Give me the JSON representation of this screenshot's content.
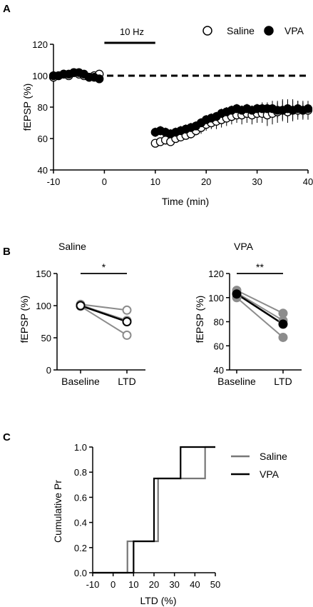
{
  "chart_data": [
    {
      "panel_letter": "A",
      "type": "scatter",
      "xlabel": "Time (min)",
      "ylabel": "fEPSP (%)",
      "xlim": [
        -10,
        40
      ],
      "ylim": [
        40,
        120
      ],
      "xticks": [
        "-10",
        "0",
        "10",
        "20",
        "30",
        "40"
      ],
      "yticks": [
        "40",
        "60",
        "80",
        "100",
        "120"
      ],
      "stimulus_label": "10 Hz",
      "stimulus_range": [
        0,
        10
      ],
      "baseline_level": 100,
      "legend_position": "top-right",
      "series": [
        {
          "name": "Saline",
          "marker": "open-circle",
          "x": [
            -10,
            -9,
            -8,
            -7,
            -6,
            -5,
            -4,
            -3,
            -2,
            -1,
            10,
            11,
            12,
            13,
            14,
            15,
            16,
            17,
            18,
            19,
            20,
            21,
            22,
            23,
            24,
            25,
            26,
            27,
            28,
            29,
            30,
            31,
            32,
            33,
            34,
            35,
            36,
            37,
            38,
            39,
            40
          ],
          "y": [
            99,
            100,
            101,
            100,
            102,
            101,
            100,
            99,
            100,
            101,
            57,
            58,
            59,
            58,
            60,
            61,
            62,
            63,
            65,
            67,
            69,
            70,
            71,
            72,
            73,
            74,
            75,
            75,
            76,
            75,
            76,
            76,
            75,
            76,
            77,
            78,
            77,
            78,
            78,
            78,
            78
          ],
          "error": [
            1,
            1,
            1,
            1,
            1,
            1,
            1,
            1,
            1,
            1,
            2,
            2,
            2,
            2,
            2,
            2,
            2,
            3,
            3,
            4,
            4,
            4,
            5,
            5,
            5,
            5,
            5,
            6,
            6,
            6,
            6,
            6,
            7,
            7,
            7,
            7,
            7,
            7,
            6,
            6,
            6
          ]
        },
        {
          "name": "VPA",
          "marker": "filled-circle",
          "x": [
            -10,
            -9,
            -8,
            -7,
            -6,
            -5,
            -4,
            -3,
            -2,
            -1,
            10,
            11,
            12,
            13,
            14,
            15,
            16,
            17,
            18,
            19,
            20,
            21,
            22,
            23,
            24,
            25,
            26,
            27,
            28,
            29,
            30,
            31,
            32,
            33,
            34,
            35,
            36,
            37,
            38,
            39,
            40
          ],
          "y": [
            100,
            100,
            101,
            101,
            102,
            102,
            101,
            99,
            99,
            98,
            64,
            65,
            64,
            63,
            64,
            65,
            66,
            67,
            68,
            70,
            72,
            73,
            74,
            76,
            77,
            78,
            79,
            78,
            79,
            78,
            79,
            79,
            79,
            79,
            78,
            78,
            79,
            78,
            79,
            78,
            79
          ],
          "error": [
            1,
            1,
            1,
            1,
            1,
            1,
            1,
            1,
            1,
            1,
            3,
            3,
            3,
            3,
            3,
            3,
            3,
            3,
            3,
            3,
            3,
            3,
            3,
            3,
            3,
            3,
            3,
            3,
            3,
            3,
            3,
            4,
            4,
            5,
            5,
            6,
            6,
            6,
            5,
            5,
            4
          ]
        }
      ]
    },
    {
      "panel_letter": "B",
      "type": "line",
      "title": "Saline",
      "ylabel": "fEPSP (%)",
      "categories": [
        "Baseline",
        "LTD"
      ],
      "ylim": [
        0,
        150
      ],
      "yticks": [
        "0",
        "50",
        "100",
        "150"
      ],
      "significance": "*",
      "individual_pairs": [
        [
          102,
          93
        ],
        [
          101,
          77
        ],
        [
          99,
          54
        ]
      ],
      "mean_pair": [
        100,
        75
      ]
    },
    {
      "type": "line",
      "title": "VPA",
      "ylabel": "fEPSP (%)",
      "categories": [
        "Baseline",
        "LTD"
      ],
      "ylim": [
        40,
        120
      ],
      "yticks": [
        "40",
        "60",
        "80",
        "100",
        "120"
      ],
      "significance": "**",
      "individual_pairs": [
        [
          106,
          87
        ],
        [
          104,
          81
        ],
        [
          100,
          67
        ]
      ],
      "mean_pair": [
        103,
        78
      ]
    },
    {
      "panel_letter": "C",
      "type": "line",
      "xlabel": "LTD (%)",
      "ylabel": "Cumulative Pr",
      "xlim": [
        -10,
        50
      ],
      "ylim": [
        0,
        1
      ],
      "xticks": [
        "-10",
        "0",
        "10",
        "20",
        "30",
        "40",
        "50"
      ],
      "yticks": [
        "0.0",
        "0.2",
        "0.4",
        "0.6",
        "0.8",
        "1.0"
      ],
      "legend_position": "top-right",
      "series": [
        {
          "name": "Saline",
          "color": "#777777",
          "x": [
            -10,
            7,
            7,
            22,
            22,
            45,
            45,
            50
          ],
          "y": [
            0,
            0,
            0.25,
            0.25,
            0.75,
            0.75,
            1,
            1
          ]
        },
        {
          "name": "VPA",
          "color": "#000000",
          "x": [
            -10,
            10,
            10,
            20,
            20,
            33,
            33,
            50
          ],
          "y": [
            0,
            0,
            0.25,
            0.25,
            0.75,
            0.75,
            1,
            1
          ]
        }
      ]
    }
  ]
}
